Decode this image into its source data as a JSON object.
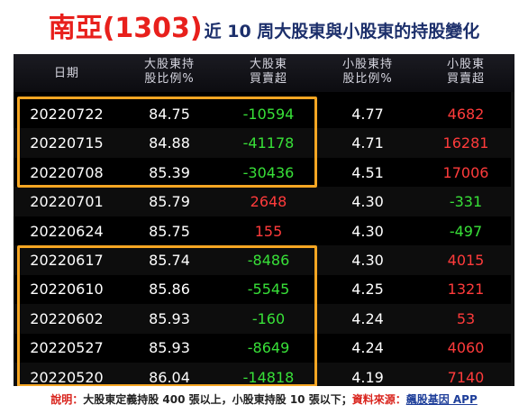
{
  "header": {
    "stock": "南亞(1303)",
    "subtitle": "近 10 周大股東與小股東的持股變化"
  },
  "table": {
    "columns": [
      "日期",
      "大股東持\n股比例%",
      "大股東\n買賣超",
      "小股東持\n股比例%",
      "小股東\n買賣超"
    ],
    "rows": [
      {
        "date": "20220722",
        "large_pct": "84.75",
        "large_net": "-10594",
        "small_pct": "4.77",
        "small_net": "4682"
      },
      {
        "date": "20220715",
        "large_pct": "84.88",
        "large_net": "-41178",
        "small_pct": "4.71",
        "small_net": "16281"
      },
      {
        "date": "20220708",
        "large_pct": "85.39",
        "large_net": "-30436",
        "small_pct": "4.51",
        "small_net": "17006"
      },
      {
        "date": "20220701",
        "large_pct": "85.79",
        "large_net": "2648",
        "small_pct": "4.30",
        "small_net": "-331"
      },
      {
        "date": "20220624",
        "large_pct": "85.75",
        "large_net": "155",
        "small_pct": "4.30",
        "small_net": "-497"
      },
      {
        "date": "20220617",
        "large_pct": "85.74",
        "large_net": "-8486",
        "small_pct": "4.30",
        "small_net": "4015"
      },
      {
        "date": "20220610",
        "large_pct": "85.86",
        "large_net": "-5545",
        "small_pct": "4.25",
        "small_net": "1321"
      },
      {
        "date": "20220602",
        "large_pct": "85.93",
        "large_net": "-160",
        "small_pct": "4.24",
        "small_net": "53"
      },
      {
        "date": "20220527",
        "large_pct": "85.93",
        "large_net": "-8649",
        "small_pct": "4.24",
        "small_net": "4060"
      },
      {
        "date": "20220520",
        "large_pct": "86.04",
        "large_net": "-14818",
        "small_pct": "4.19",
        "small_net": "7140"
      }
    ]
  },
  "footer": {
    "note_label": "說明：",
    "note_text": "大股東定義持股 400 張以上，小股東持股 10 張以下；",
    "source_label": "資料來源：",
    "source_link": "飆股基因 APP"
  },
  "colors": {
    "title_red": "#e8201c",
    "subtitle_navy": "#1c2f6b",
    "positive": "#ff3b3b",
    "negative": "#38e038",
    "highlight": "#f5a623"
  }
}
